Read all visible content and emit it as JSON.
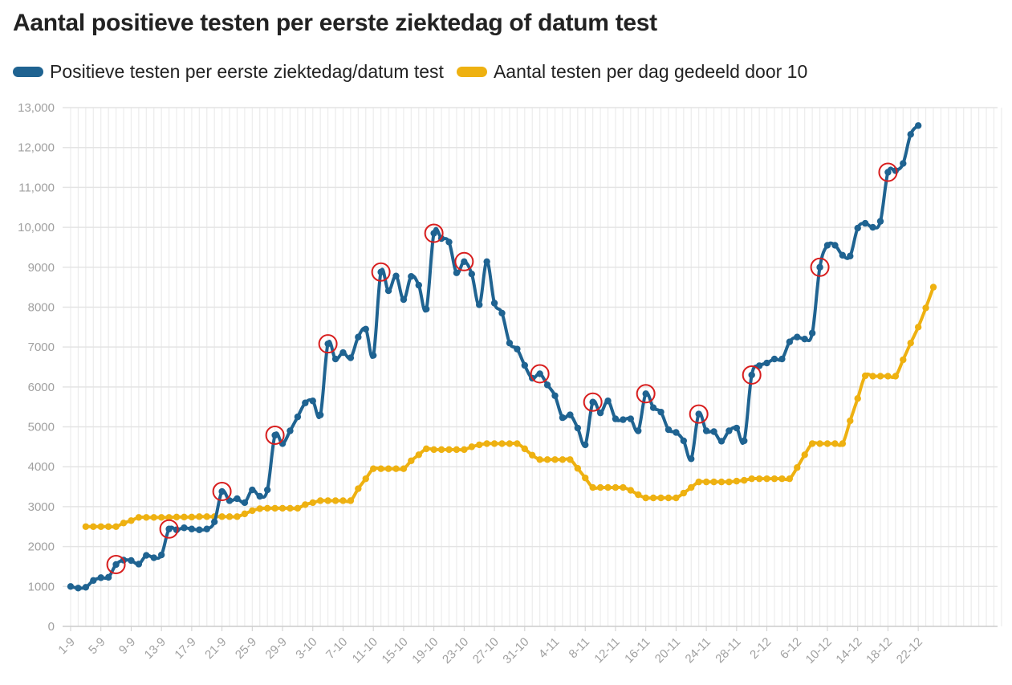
{
  "title": "Aantal positieve testen per eerste ziektedag of datum test",
  "legend": {
    "items": [
      {
        "label": "Positieve testen per eerste ziektedag/datum test",
        "color": "#1f6391"
      },
      {
        "label": "Aantal testen per dag gedeeld door 10",
        "color": "#eeb111"
      }
    ]
  },
  "highlight_color": "#d81e1e",
  "chart_data": {
    "type": "line",
    "ylim": [
      0,
      13000
    ],
    "yticks": [
      "0",
      "1000",
      "2000",
      "3000",
      "4000",
      "5000",
      "6000",
      "7000",
      "8000",
      "9000",
      "10,000",
      "11,000",
      "12,000",
      "13,000"
    ],
    "xtick_labels": [
      "1-9",
      "5-9",
      "9-9",
      "13-9",
      "17-9",
      "21-9",
      "25-9",
      "29-9",
      "3-10",
      "7-10",
      "11-10",
      "15-10",
      "19-10",
      "23-10",
      "27-10",
      "31-10",
      "4-11",
      "8-11",
      "12-11",
      "16-11",
      "20-11",
      "24-11",
      "28-11",
      "2-12",
      "6-12",
      "10-12",
      "14-12",
      "18-12",
      "22-12"
    ],
    "grid": true,
    "legend_position": "top",
    "series": [
      {
        "name": "Positieve testen per eerste ziektedag/datum test",
        "color": "#1f6391",
        "start_date": "1-9",
        "values": [
          1000,
          960,
          980,
          1150,
          1220,
          1230,
          1550,
          1660,
          1650,
          1560,
          1780,
          1720,
          1790,
          2440,
          2420,
          2470,
          2440,
          2420,
          2440,
          2620,
          3380,
          3150,
          3200,
          3100,
          3420,
          3260,
          3420,
          4790,
          4580,
          4900,
          5250,
          5600,
          5650,
          5300,
          7080,
          6700,
          6860,
          6730,
          7250,
          7450,
          6790,
          8880,
          8410,
          8780,
          8190,
          8770,
          8550,
          7950,
          9850,
          9720,
          9630,
          8860,
          9140,
          8830,
          8060,
          9140,
          8100,
          7850,
          7100,
          6950,
          6540,
          6220,
          6330,
          6050,
          5780,
          5230,
          5300,
          4970,
          4550,
          5620,
          5350,
          5650,
          5200,
          5180,
          5200,
          4900,
          5830,
          5480,
          5370,
          4930,
          4860,
          4650,
          4200,
          5320,
          4900,
          4880,
          4640,
          4900,
          4970,
          4650,
          6300,
          6530,
          6600,
          6700,
          6700,
          7130,
          7250,
          7200,
          7350,
          9000,
          9550,
          9550,
          9300,
          9280,
          9980,
          10100,
          10000,
          10150,
          11380,
          11420,
          11600,
          12330,
          12550
        ],
        "highlights": [
          1550,
          2440,
          3380,
          4790,
          7080,
          8880,
          9850,
          9140,
          6330,
          5620,
          5830,
          5320,
          6300,
          9000,
          11380
        ]
      },
      {
        "name": "Aantal testen per dag gedeeld door 10",
        "color": "#eeb111",
        "start_date": "3-9",
        "values": [
          2500,
          2500,
          2500,
          2500,
          2500,
          2590,
          2650,
          2730,
          2730,
          2730,
          2730,
          2730,
          2740,
          2740,
          2740,
          2750,
          2750,
          2750,
          2750,
          2750,
          2750,
          2820,
          2900,
          2950,
          2960,
          2960,
          2960,
          2960,
          2960,
          3050,
          3100,
          3150,
          3150,
          3150,
          3150,
          3150,
          3450,
          3700,
          3950,
          3950,
          3950,
          3950,
          3950,
          4150,
          4300,
          4450,
          4430,
          4430,
          4430,
          4430,
          4430,
          4500,
          4550,
          4580,
          4580,
          4580,
          4580,
          4580,
          4450,
          4290,
          4180,
          4180,
          4180,
          4180,
          4180,
          3960,
          3720,
          3480,
          3480,
          3480,
          3480,
          3480,
          3410,
          3300,
          3220,
          3220,
          3220,
          3220,
          3220,
          3340,
          3480,
          3620,
          3620,
          3620,
          3620,
          3620,
          3640,
          3660,
          3700,
          3700,
          3700,
          3700,
          3700,
          3700,
          3980,
          4300,
          4580,
          4580,
          4580,
          4580,
          4580,
          5150,
          5710,
          6280,
          6270,
          6270,
          6270,
          6270,
          6680,
          7100,
          7500,
          7980,
          8500
        ]
      }
    ]
  }
}
